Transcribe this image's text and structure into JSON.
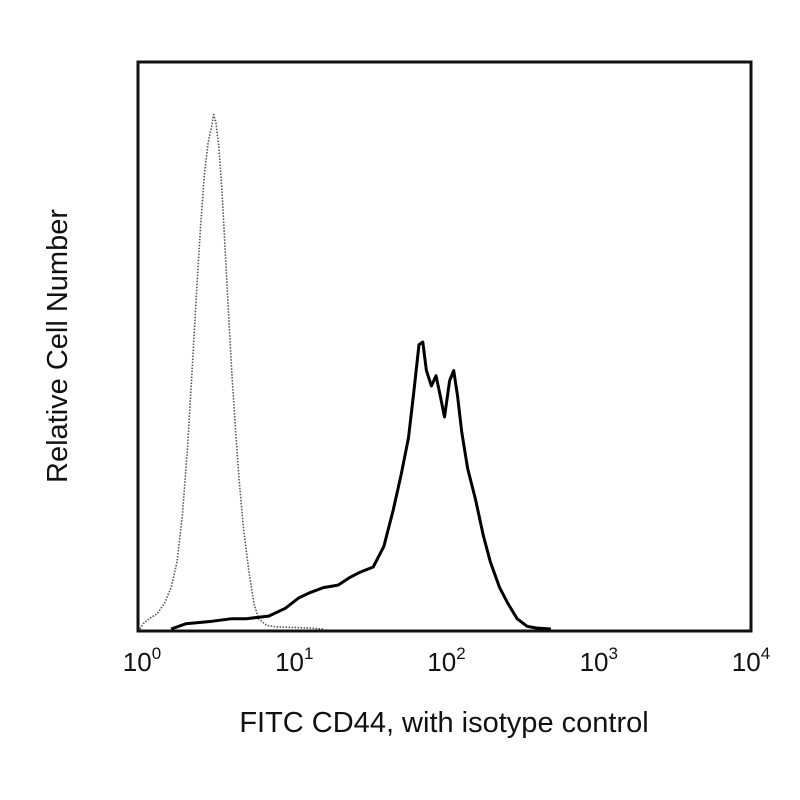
{
  "chart_data": {
    "type": "line",
    "title": "",
    "xlabel": "FITC CD44, with isotype control",
    "ylabel": "Relative Cell Number",
    "xscale": "log",
    "xlim": [
      1,
      10000
    ],
    "ylim": [
      0,
      1
    ],
    "grid": false,
    "legend": "none",
    "ticks": [
      {
        "base": "10",
        "exp": "0",
        "value": 1
      },
      {
        "base": "10",
        "exp": "1",
        "value": 10
      },
      {
        "base": "10",
        "exp": "2",
        "value": 100
      },
      {
        "base": "10",
        "exp": "3",
        "value": 1000
      },
      {
        "base": "10",
        "exp": "4",
        "value": 10000
      }
    ],
    "series": [
      {
        "style": "dotted",
        "color": "#555555",
        "points": [
          [
            1.0,
            0.0
          ],
          [
            1.05,
            0.01
          ],
          [
            1.15,
            0.02
          ],
          [
            1.3,
            0.03
          ],
          [
            1.45,
            0.05
          ],
          [
            1.6,
            0.08
          ],
          [
            1.75,
            0.13
          ],
          [
            1.9,
            0.22
          ],
          [
            2.05,
            0.35
          ],
          [
            2.2,
            0.5
          ],
          [
            2.35,
            0.65
          ],
          [
            2.5,
            0.78
          ],
          [
            2.65,
            0.88
          ],
          [
            2.8,
            0.94
          ],
          [
            2.95,
            0.97
          ],
          [
            3.05,
            0.995
          ],
          [
            3.15,
            0.98
          ],
          [
            3.3,
            0.93
          ],
          [
            3.45,
            0.85
          ],
          [
            3.6,
            0.75
          ],
          [
            3.8,
            0.62
          ],
          [
            4.0,
            0.5
          ],
          [
            4.25,
            0.38
          ],
          [
            4.5,
            0.28
          ],
          [
            4.8,
            0.19
          ],
          [
            5.2,
            0.11
          ],
          [
            5.6,
            0.05
          ],
          [
            6.0,
            0.02
          ],
          [
            6.8,
            0.007
          ],
          [
            8.0,
            0.004
          ],
          [
            10.0,
            0.003
          ],
          [
            13.0,
            0.002
          ],
          [
            16.0,
            0.0
          ]
        ]
      },
      {
        "style": "solid",
        "color": "#000000",
        "points": [
          [
            1.6,
            0.0
          ],
          [
            2.0,
            0.01
          ],
          [
            3.0,
            0.015
          ],
          [
            4.0,
            0.02
          ],
          [
            5.0,
            0.02
          ],
          [
            7.0,
            0.025
          ],
          [
            9.0,
            0.04
          ],
          [
            11.0,
            0.06
          ],
          [
            13.0,
            0.07
          ],
          [
            16.0,
            0.08
          ],
          [
            20.0,
            0.085
          ],
          [
            24.0,
            0.1
          ],
          [
            28.0,
            0.11
          ],
          [
            34.0,
            0.12
          ],
          [
            40.0,
            0.16
          ],
          [
            46.0,
            0.23
          ],
          [
            52.0,
            0.3
          ],
          [
            58.0,
            0.37
          ],
          [
            63.0,
            0.46
          ],
          [
            68.0,
            0.55
          ],
          [
            72.0,
            0.555
          ],
          [
            76.0,
            0.5
          ],
          [
            82.0,
            0.47
          ],
          [
            88.0,
            0.49
          ],
          [
            94.0,
            0.45
          ],
          [
            100.0,
            0.41
          ],
          [
            108.0,
            0.48
          ],
          [
            115.0,
            0.5
          ],
          [
            122.0,
            0.45
          ],
          [
            130.0,
            0.38
          ],
          [
            142.0,
            0.31
          ],
          [
            160.0,
            0.25
          ],
          [
            180.0,
            0.18
          ],
          [
            200.0,
            0.13
          ],
          [
            230.0,
            0.08
          ],
          [
            260.0,
            0.05
          ],
          [
            300.0,
            0.02
          ],
          [
            350.0,
            0.005
          ],
          [
            400.0,
            0.002
          ],
          [
            500.0,
            0.0
          ]
        ]
      }
    ]
  }
}
